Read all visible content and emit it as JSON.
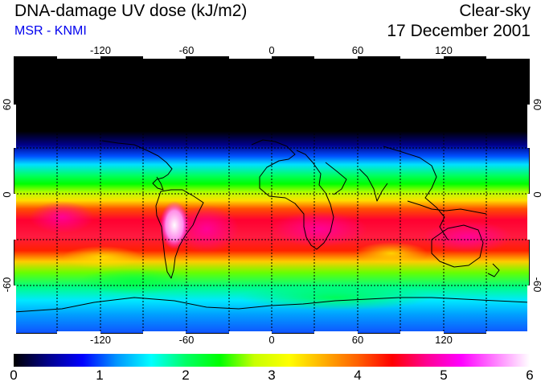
{
  "header": {
    "title": "DNA-damage UV dose (kJ/m2)",
    "credit": "MSR - KNMI",
    "condition": "Clear-sky",
    "date": "17 December 2001"
  },
  "colors": {
    "credit": "#0000ee",
    "scale": [
      "#000000",
      "#00008a",
      "#0000ff",
      "#0096ff",
      "#00ffff",
      "#00ff66",
      "#00ff00",
      "#c8ff00",
      "#ffff00",
      "#ffb000",
      "#ff6000",
      "#ff0000",
      "#ff0090",
      "#ff00ff",
      "#ff80ff",
      "#ffffff"
    ]
  },
  "map": {
    "lon_ticks": [
      "-120",
      "-60",
      "0",
      "60",
      "120"
    ],
    "lat_ticks": [
      "60",
      "0",
      "-60"
    ]
  },
  "colorbar": {
    "min": 0,
    "max": 6,
    "labels": [
      "0",
      "1",
      "2",
      "3",
      "4",
      "5",
      "6"
    ]
  }
}
